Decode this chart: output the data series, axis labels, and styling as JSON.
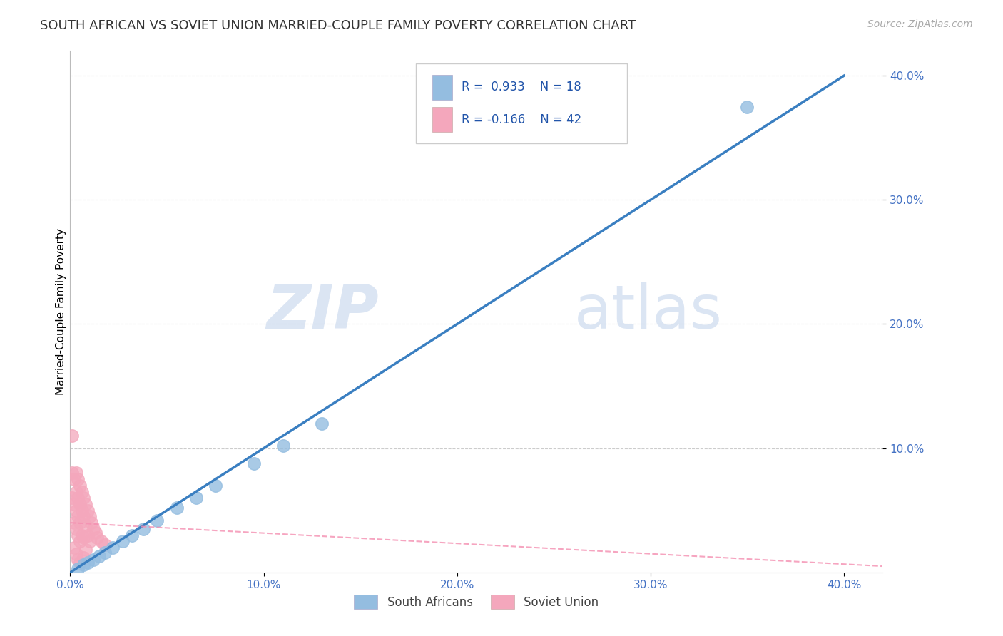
{
  "title": "SOUTH AFRICAN VS SOVIET UNION MARRIED-COUPLE FAMILY POVERTY CORRELATION CHART",
  "source": "Source: ZipAtlas.com",
  "ylabel": "Married-Couple Family Poverty",
  "xlim": [
    0.0,
    0.42
  ],
  "ylim": [
    0.0,
    0.42
  ],
  "xticks": [
    0.0,
    0.1,
    0.2,
    0.3,
    0.4
  ],
  "yticks": [
    0.1,
    0.2,
    0.3,
    0.4
  ],
  "xticklabels": [
    "0.0%",
    "10.0%",
    "20.0%",
    "30.0%",
    "40.0%"
  ],
  "yticklabels": [
    "10.0%",
    "20.0%",
    "30.0%",
    "40.0%"
  ],
  "blue_color": "#94bde0",
  "pink_color": "#f4a7bc",
  "regression_blue_color": "#3a7fc1",
  "regression_pink_color": "#f48fb1",
  "legend_R_blue": "R =  0.933",
  "legend_N_blue": "N = 18",
  "legend_R_pink": "R = -0.166",
  "legend_N_pink": "N = 42",
  "legend_label_blue": "South Africans",
  "legend_label_pink": "Soviet Union",
  "watermark_zip": "ZIP",
  "watermark_atlas": "atlas",
  "blue_points_x": [
    0.004,
    0.007,
    0.009,
    0.012,
    0.015,
    0.018,
    0.022,
    0.027,
    0.032,
    0.038,
    0.045,
    0.055,
    0.065,
    0.075,
    0.095,
    0.11,
    0.13,
    0.35
  ],
  "blue_points_y": [
    0.003,
    0.006,
    0.008,
    0.01,
    0.013,
    0.016,
    0.02,
    0.025,
    0.03,
    0.035,
    0.042,
    0.052,
    0.06,
    0.07,
    0.088,
    0.102,
    0.12,
    0.375
  ],
  "pink_points_x": [
    0.001,
    0.001,
    0.001,
    0.002,
    0.002,
    0.002,
    0.002,
    0.003,
    0.003,
    0.003,
    0.003,
    0.003,
    0.004,
    0.004,
    0.004,
    0.004,
    0.004,
    0.005,
    0.005,
    0.005,
    0.005,
    0.005,
    0.006,
    0.006,
    0.006,
    0.007,
    0.007,
    0.007,
    0.007,
    0.008,
    0.008,
    0.008,
    0.009,
    0.009,
    0.01,
    0.01,
    0.011,
    0.012,
    0.013,
    0.014,
    0.016,
    0.018
  ],
  "pink_points_y": [
    0.11,
    0.08,
    0.06,
    0.075,
    0.055,
    0.04,
    0.02,
    0.08,
    0.065,
    0.05,
    0.035,
    0.015,
    0.075,
    0.06,
    0.045,
    0.03,
    0.01,
    0.07,
    0.055,
    0.04,
    0.025,
    0.008,
    0.065,
    0.05,
    0.03,
    0.06,
    0.045,
    0.028,
    0.012,
    0.055,
    0.038,
    0.018,
    0.05,
    0.03,
    0.045,
    0.025,
    0.04,
    0.035,
    0.032,
    0.028,
    0.025,
    0.022
  ],
  "blue_regression": [
    0.0,
    0.0,
    0.4,
    0.4
  ],
  "pink_regression_x0": 0.0,
  "pink_regression_y0": 0.04,
  "pink_regression_x1": 0.42,
  "pink_regression_y1": 0.005,
  "background_color": "#ffffff",
  "grid_color": "#cccccc",
  "title_fontsize": 13,
  "axis_label_fontsize": 11,
  "tick_fontsize": 11,
  "tick_color": "#4472c4",
  "legend_text_color": "#2255aa"
}
